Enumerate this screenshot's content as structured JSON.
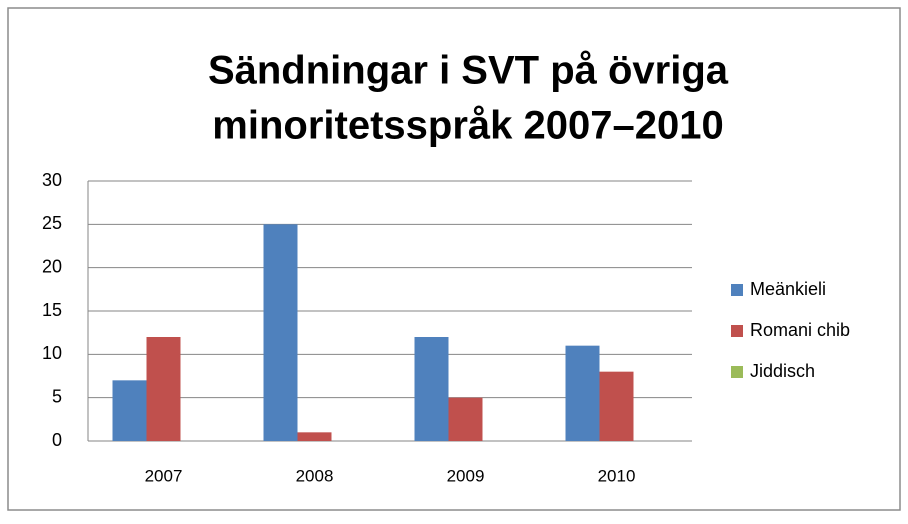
{
  "chart_data": {
    "type": "bar",
    "title": [
      "Sändningar i SVT på övriga",
      "minoritetsspråk 2007–2010"
    ],
    "categories": [
      "2007",
      "2008",
      "2009",
      "2010"
    ],
    "series": [
      {
        "name": "Meänkieli",
        "color": "#4f81bd",
        "values": [
          7,
          25,
          12,
          11
        ]
      },
      {
        "name": "Romani chib",
        "color": "#c0504d",
        "values": [
          12,
          1,
          5,
          8
        ]
      },
      {
        "name": "Jiddisch",
        "color": "#9bbb59",
        "values": [
          0,
          0,
          0,
          0
        ]
      }
    ],
    "ylim": [
      0,
      30
    ],
    "yticks": [
      0,
      5,
      10,
      15,
      20,
      25,
      30
    ],
    "grid": true,
    "legend": "right"
  }
}
